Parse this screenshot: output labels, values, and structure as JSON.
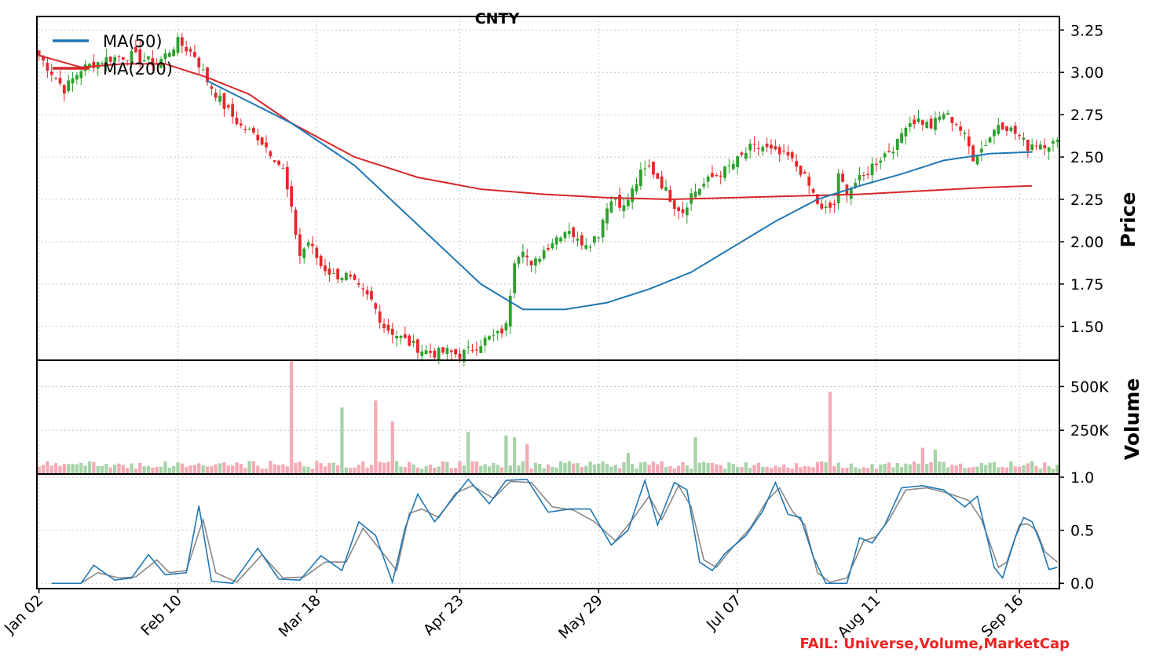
{
  "chart_data": {
    "type": "candlestick",
    "title": "CNTY",
    "footer_note": "FAIL: Universe,Volume,MarketCap",
    "colors": {
      "up": "#2ca02c",
      "down": "#e8262b",
      "ma50": "#1f77b4",
      "ma200": "#d62728",
      "stoch_k": "#1f77b4",
      "stoch_d": "#888888",
      "vol_up": "#a7d3a9",
      "vol_down": "#f4aab4",
      "fail": "#ee2222"
    },
    "x_tick_labels": [
      "Jan 02",
      "Feb 10",
      "Mar 18",
      "Apr 23",
      "May 29",
      "Jul 07",
      "Aug 11",
      "Sep 16"
    ],
    "price_panel": {
      "ylabel": "Price",
      "ylim": [
        1.3,
        3.33
      ],
      "yticks": [
        1.5,
        1.75,
        2.0,
        2.25,
        2.5,
        2.75,
        3.0,
        3.25
      ],
      "ytick_labels": [
        "1.50",
        "1.75",
        "2.00",
        "2.25",
        "2.50",
        "2.75",
        "3.00",
        "3.25"
      ],
      "legend": [
        {
          "name": "MA(50)",
          "color": "#1f77b4"
        },
        {
          "name": "MA(200)",
          "color": "#d62728"
        }
      ],
      "legend_position": "upper-left",
      "grid": true
    },
    "volume_panel": {
      "ylabel": "Volume",
      "ylim": [
        0,
        650000
      ],
      "yticks": [
        250000,
        500000
      ],
      "ytick_labels": [
        "250K",
        "500K"
      ],
      "grid": true
    },
    "oscillator_panel": {
      "ylabel": "",
      "ylim": [
        -0.05,
        1.03
      ],
      "yticks": [
        0.0,
        0.5,
        1.0
      ],
      "ytick_labels": [
        "0.0",
        "0.5",
        "1.0"
      ],
      "grid": true
    },
    "close_anchors": [
      [
        0,
        3.1
      ],
      [
        3,
        3.0
      ],
      [
        6,
        2.9
      ],
      [
        10,
        3.02
      ],
      [
        16,
        3.08
      ],
      [
        22,
        3.1
      ],
      [
        28,
        3.05
      ],
      [
        33,
        3.18
      ],
      [
        37,
        3.1
      ],
      [
        40,
        2.95
      ],
      [
        44,
        2.8
      ],
      [
        48,
        2.68
      ],
      [
        52,
        2.62
      ],
      [
        56,
        2.5
      ],
      [
        58,
        2.42
      ],
      [
        60,
        2.18
      ],
      [
        62,
        1.92
      ],
      [
        64,
        2.0
      ],
      [
        67,
        1.86
      ],
      [
        70,
        1.8
      ],
      [
        73,
        1.8
      ],
      [
        76,
        1.72
      ],
      [
        79,
        1.65
      ],
      [
        82,
        1.5
      ],
      [
        85,
        1.45
      ],
      [
        88,
        1.4
      ],
      [
        91,
        1.36
      ],
      [
        94,
        1.34
      ],
      [
        97,
        1.35
      ],
      [
        100,
        1.33
      ],
      [
        103,
        1.37
      ],
      [
        106,
        1.42
      ],
      [
        109,
        1.45
      ],
      [
        111,
        1.5
      ],
      [
        113,
        1.9
      ],
      [
        115,
        1.97
      ],
      [
        117,
        1.84
      ],
      [
        119,
        1.92
      ],
      [
        121,
        1.98
      ],
      [
        124,
        2.05
      ],
      [
        126,
        2.08
      ],
      [
        128,
        2.0
      ],
      [
        131,
        2.0
      ],
      [
        133,
        2.05
      ],
      [
        135,
        2.22
      ],
      [
        137,
        2.26
      ],
      [
        139,
        2.2
      ],
      [
        141,
        2.3
      ],
      [
        143,
        2.4
      ],
      [
        145,
        2.44
      ],
      [
        147,
        2.38
      ],
      [
        149,
        2.3
      ],
      [
        151,
        2.22
      ],
      [
        153,
        2.18
      ],
      [
        155,
        2.28
      ],
      [
        157,
        2.32
      ],
      [
        160,
        2.38
      ],
      [
        163,
        2.42
      ],
      [
        166,
        2.48
      ],
      [
        169,
        2.55
      ],
      [
        172,
        2.56
      ],
      [
        175,
        2.52
      ],
      [
        178,
        2.5
      ],
      [
        181,
        2.42
      ],
      [
        184,
        2.28
      ],
      [
        186,
        2.18
      ],
      [
        188,
        2.2
      ],
      [
        189,
        2.22
      ],
      [
        190,
        2.38
      ],
      [
        192,
        2.3
      ],
      [
        194,
        2.35
      ],
      [
        196,
        2.38
      ],
      [
        198,
        2.45
      ],
      [
        201,
        2.52
      ],
      [
        204,
        2.58
      ],
      [
        206,
        2.7
      ],
      [
        209,
        2.72
      ],
      [
        212,
        2.68
      ],
      [
        215,
        2.76
      ],
      [
        218,
        2.7
      ],
      [
        220,
        2.62
      ],
      [
        222,
        2.5
      ],
      [
        224,
        2.55
      ],
      [
        226,
        2.62
      ],
      [
        228,
        2.7
      ],
      [
        230,
        2.68
      ],
      [
        233,
        2.62
      ],
      [
        235,
        2.56
      ],
      [
        236,
        2.58
      ]
    ],
    "ma50_points": [
      [
        40,
        2.95
      ],
      [
        60,
        2.7
      ],
      [
        75,
        2.45
      ],
      [
        90,
        2.1
      ],
      [
        105,
        1.75
      ],
      [
        115,
        1.6
      ],
      [
        125,
        1.6
      ],
      [
        135,
        1.64
      ],
      [
        145,
        1.72
      ],
      [
        155,
        1.82
      ],
      [
        165,
        1.97
      ],
      [
        175,
        2.12
      ],
      [
        185,
        2.25
      ],
      [
        195,
        2.33
      ],
      [
        205,
        2.4
      ],
      [
        215,
        2.48
      ],
      [
        226,
        2.52
      ],
      [
        236,
        2.53
      ]
    ],
    "ma200_points": [
      [
        0,
        3.1
      ],
      [
        10,
        3.03
      ],
      [
        20,
        3.05
      ],
      [
        30,
        3.05
      ],
      [
        40,
        2.97
      ],
      [
        50,
        2.87
      ],
      [
        60,
        2.7
      ],
      [
        75,
        2.5
      ],
      [
        90,
        2.38
      ],
      [
        105,
        2.31
      ],
      [
        120,
        2.28
      ],
      [
        135,
        2.26
      ],
      [
        150,
        2.25
      ],
      [
        165,
        2.26
      ],
      [
        180,
        2.27
      ],
      [
        195,
        2.28
      ],
      [
        210,
        2.3
      ],
      [
        225,
        2.32
      ],
      [
        236,
        2.33
      ]
    ],
    "stoch_k_anchors": [
      [
        3,
        0.0
      ],
      [
        10,
        0.0
      ],
      [
        13,
        0.17
      ],
      [
        18,
        0.03
      ],
      [
        22,
        0.05
      ],
      [
        26,
        0.27
      ],
      [
        30,
        0.08
      ],
      [
        35,
        0.1
      ],
      [
        38,
        0.73
      ],
      [
        41,
        0.02
      ],
      [
        46,
        0.0
      ],
      [
        52,
        0.33
      ],
      [
        57,
        0.04
      ],
      [
        62,
        0.03
      ],
      [
        67,
        0.26
      ],
      [
        72,
        0.12
      ],
      [
        76,
        0.58
      ],
      [
        80,
        0.45
      ],
      [
        84,
        0.01
      ],
      [
        87,
        0.52
      ],
      [
        90,
        0.84
      ],
      [
        94,
        0.58
      ],
      [
        98,
        0.78
      ],
      [
        102,
        0.98
      ],
      [
        107,
        0.75
      ],
      [
        111,
        0.97
      ],
      [
        116,
        0.98
      ],
      [
        121,
        0.67
      ],
      [
        126,
        0.7
      ],
      [
        131,
        0.7
      ],
      [
        136,
        0.36
      ],
      [
        140,
        0.5
      ],
      [
        144,
        0.97
      ],
      [
        147,
        0.55
      ],
      [
        151,
        0.95
      ],
      [
        154,
        0.88
      ],
      [
        157,
        0.2
      ],
      [
        160,
        0.12
      ],
      [
        163,
        0.28
      ],
      [
        168,
        0.45
      ],
      [
        172,
        0.68
      ],
      [
        175,
        0.95
      ],
      [
        178,
        0.65
      ],
      [
        181,
        0.62
      ],
      [
        184,
        0.25
      ],
      [
        187,
        0.0
      ],
      [
        192,
        0.0
      ],
      [
        195,
        0.43
      ],
      [
        198,
        0.38
      ],
      [
        201,
        0.55
      ],
      [
        205,
        0.9
      ],
      [
        210,
        0.92
      ],
      [
        215,
        0.88
      ],
      [
        220,
        0.72
      ],
      [
        223,
        0.82
      ],
      [
        227,
        0.15
      ],
      [
        229,
        0.05
      ],
      [
        232,
        0.43
      ],
      [
        234,
        0.62
      ],
      [
        236,
        0.58
      ],
      [
        238,
        0.38
      ],
      [
        240,
        0.13
      ],
      [
        242,
        0.15
      ]
    ],
    "stoch_d_anchors": [
      [
        3,
        0.0
      ],
      [
        10,
        0.0
      ],
      [
        14,
        0.1
      ],
      [
        19,
        0.05
      ],
      [
        23,
        0.06
      ],
      [
        28,
        0.22
      ],
      [
        31,
        0.1
      ],
      [
        35,
        0.12
      ],
      [
        39,
        0.6
      ],
      [
        42,
        0.1
      ],
      [
        47,
        0.01
      ],
      [
        53,
        0.27
      ],
      [
        58,
        0.05
      ],
      [
        63,
        0.06
      ],
      [
        68,
        0.2
      ],
      [
        73,
        0.2
      ],
      [
        77,
        0.52
      ],
      [
        81,
        0.32
      ],
      [
        85,
        0.12
      ],
      [
        88,
        0.66
      ],
      [
        91,
        0.7
      ],
      [
        95,
        0.62
      ],
      [
        99,
        0.85
      ],
      [
        103,
        0.92
      ],
      [
        108,
        0.8
      ],
      [
        112,
        0.96
      ],
      [
        117,
        0.95
      ],
      [
        122,
        0.72
      ],
      [
        127,
        0.69
      ],
      [
        132,
        0.58
      ],
      [
        137,
        0.4
      ],
      [
        141,
        0.6
      ],
      [
        145,
        0.82
      ],
      [
        148,
        0.6
      ],
      [
        152,
        0.92
      ],
      [
        155,
        0.72
      ],
      [
        158,
        0.22
      ],
      [
        161,
        0.15
      ],
      [
        164,
        0.3
      ],
      [
        169,
        0.52
      ],
      [
        173,
        0.78
      ],
      [
        176,
        0.9
      ],
      [
        179,
        0.68
      ],
      [
        182,
        0.55
      ],
      [
        185,
        0.1
      ],
      [
        188,
        0.01
      ],
      [
        192,
        0.05
      ],
      [
        196,
        0.4
      ],
      [
        199,
        0.44
      ],
      [
        202,
        0.6
      ],
      [
        206,
        0.88
      ],
      [
        211,
        0.9
      ],
      [
        216,
        0.85
      ],
      [
        221,
        0.78
      ],
      [
        224,
        0.6
      ],
      [
        228,
        0.15
      ],
      [
        230,
        0.2
      ],
      [
        233,
        0.55
      ],
      [
        235,
        0.56
      ],
      [
        237,
        0.5
      ],
      [
        239,
        0.3
      ],
      [
        242,
        0.2
      ]
    ],
    "volume_spikes": [
      [
        60,
        650000
      ],
      [
        72,
        380000
      ],
      [
        80,
        420000
      ],
      [
        84,
        300000
      ],
      [
        102,
        240000
      ],
      [
        111,
        220000
      ],
      [
        113,
        210000
      ],
      [
        116,
        170000
      ],
      [
        140,
        120000
      ],
      [
        156,
        210000
      ],
      [
        188,
        470000
      ],
      [
        210,
        150000
      ],
      [
        213,
        140000
      ]
    ],
    "n_bars": 243
  }
}
